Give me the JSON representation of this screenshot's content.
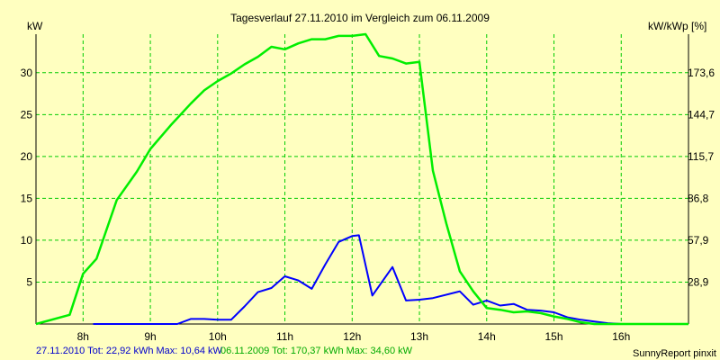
{
  "chart_data": {
    "type": "line",
    "title": "Tagesverlauf 27.11.2010 im Vergleich zum 06.11.2009",
    "ylabel_left": "kW",
    "ylabel_right": "kW/kWp [%]",
    "xlim": [
      7.3,
      17.0
    ],
    "ylim": [
      0,
      34.6
    ],
    "x_ticks": [
      8,
      9,
      10,
      11,
      12,
      13,
      14,
      15,
      16
    ],
    "x_tick_labels": [
      "8h",
      "9h",
      "10h",
      "11h",
      "12h",
      "13h",
      "14h",
      "15h",
      "16h"
    ],
    "y_ticks_left": [
      5,
      10,
      15,
      20,
      25,
      30
    ],
    "y_tick_labels_left": [
      "5",
      "10",
      "15",
      "20",
      "25",
      "30"
    ],
    "y_ticks_right_kw": [
      5,
      10,
      15,
      20,
      25,
      30
    ],
    "y_tick_labels_right": [
      "28,9",
      "57,9",
      "86,8",
      "115,7",
      "144,7",
      "173,6"
    ],
    "grid": true,
    "series": [
      {
        "name": "27.11.2010",
        "color": "#0000ff",
        "x": [
          8.15,
          8.5,
          9.0,
          9.2,
          9.4,
          9.6,
          9.8,
          10.0,
          10.2,
          10.4,
          10.6,
          10.8,
          11.0,
          11.2,
          11.4,
          11.6,
          11.8,
          12.0,
          12.1,
          12.3,
          12.6,
          12.8,
          13.0,
          13.2,
          13.6,
          13.8,
          14.0,
          14.2,
          14.4,
          14.6,
          14.8,
          15.0,
          15.2,
          15.4,
          15.6,
          15.8,
          16.0,
          16.2,
          16.4
        ],
        "y": [
          0,
          0,
          0,
          0,
          0,
          0.6,
          0.6,
          0.5,
          0.5,
          2.1,
          3.8,
          4.3,
          5.7,
          5.2,
          4.2,
          7.1,
          9.8,
          10.5,
          10.6,
          3.4,
          6.8,
          2.8,
          2.9,
          3.1,
          3.9,
          2.3,
          2.8,
          2.2,
          2.4,
          1.7,
          1.6,
          1.4,
          0.8,
          0.5,
          0.3,
          0.1,
          0,
          0,
          0
        ]
      },
      {
        "name": "06.11.2009",
        "color": "#00ee00",
        "x": [
          7.3,
          7.8,
          8.0,
          8.2,
          8.5,
          8.8,
          9.0,
          9.3,
          9.6,
          9.8,
          10.0,
          10.2,
          10.4,
          10.6,
          10.8,
          11.0,
          11.2,
          11.4,
          11.6,
          11.8,
          12.0,
          12.2,
          12.4,
          12.6,
          12.8,
          13.0,
          13.2,
          13.4,
          13.6,
          13.8,
          14.0,
          14.2,
          14.4,
          14.6,
          14.8,
          15.0,
          15.2,
          15.4,
          15.6,
          15.8,
          16.0,
          16.2,
          16.4,
          16.6,
          16.8,
          17.0
        ],
        "y": [
          0,
          1.1,
          6.0,
          7.8,
          14.8,
          18.2,
          20.9,
          23.7,
          26.3,
          27.9,
          29.0,
          29.9,
          31.0,
          31.9,
          33.1,
          32.8,
          33.5,
          34.0,
          34.0,
          34.4,
          34.4,
          34.6,
          32.0,
          31.7,
          31.1,
          31.3,
          18.3,
          12.0,
          6.3,
          3.9,
          1.9,
          1.7,
          1.4,
          1.5,
          1.3,
          0.9,
          0.6,
          0.2,
          0,
          0,
          0,
          0,
          0,
          0,
          0,
          0
        ]
      }
    ]
  },
  "footer": {
    "series1_text": "27.11.2010 Tot: 22,92 kWh Max: 10,64 kW",
    "series2_text": "06.11.2009 Tot: 170,37 kWh Max: 34,60 kW",
    "credit": "SunnyReport pinxit"
  },
  "colors": {
    "background": "#ffffc0",
    "grid": "#00cc00",
    "axis": "#000000"
  }
}
